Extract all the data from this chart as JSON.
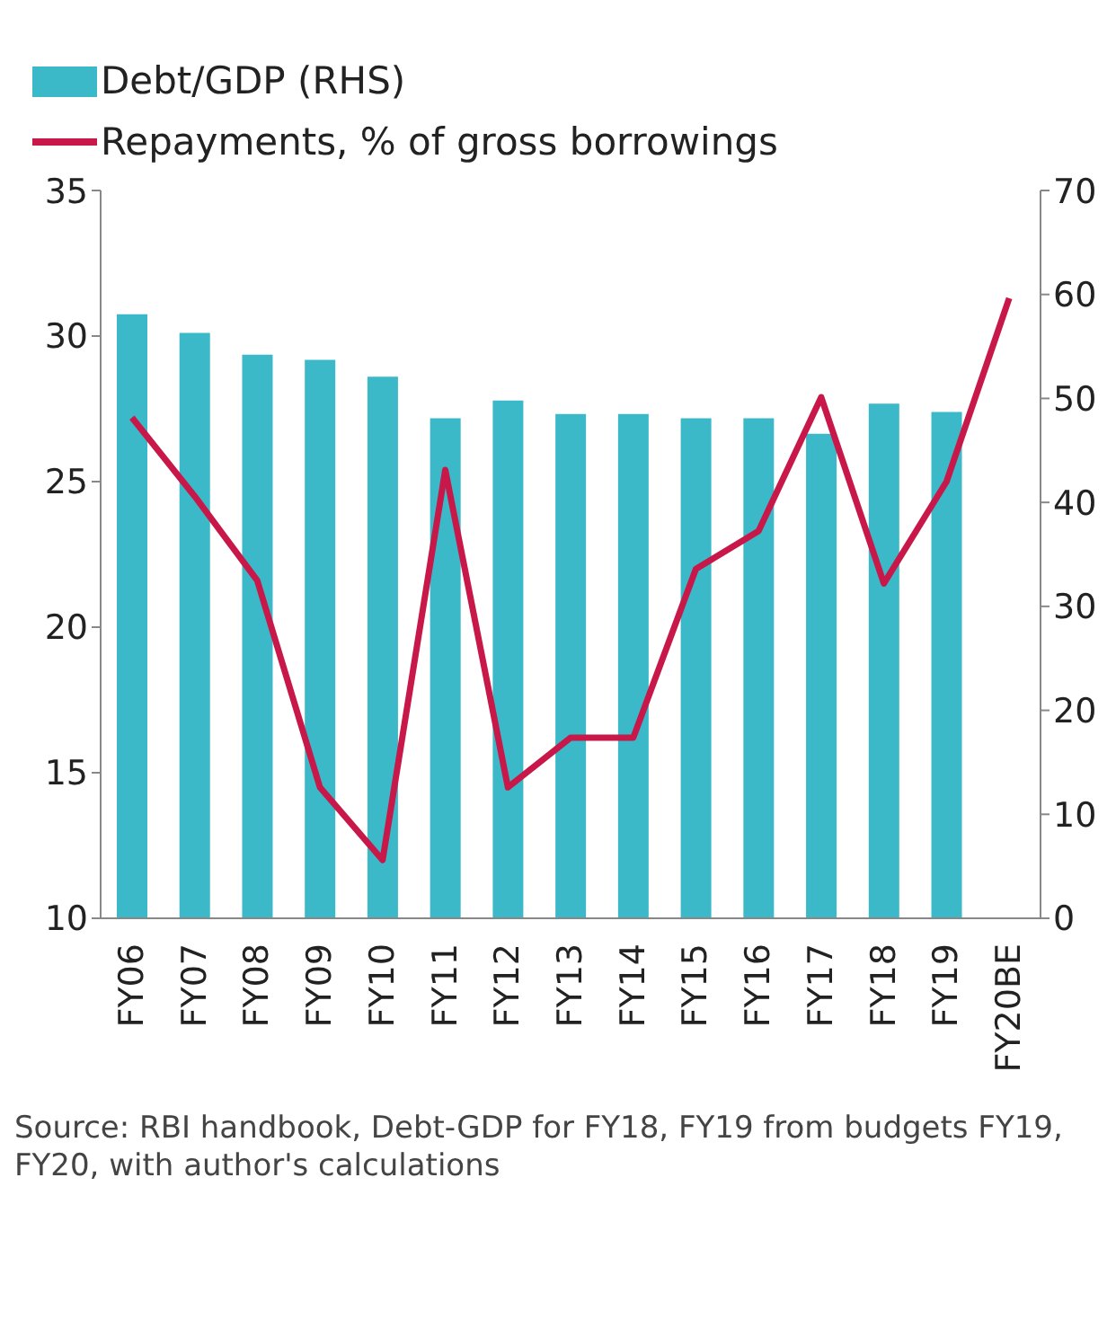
{
  "chart_data": {
    "type": "bar",
    "categories": [
      "FY06",
      "FY07",
      "FY08",
      "FY09",
      "FY10",
      "FY11",
      "FY12",
      "FY13",
      "FY14",
      "FY15",
      "FY16",
      "FY17",
      "FY18",
      "FY19",
      "FY20BE"
    ],
    "series": [
      {
        "name": "Debt/GDP (RHS)",
        "axis": "y2",
        "color": "#3bb9c9",
        "values": [
          58.1,
          56.3,
          54.2,
          53.7,
          52.1,
          48.1,
          49.8,
          48.5,
          48.5,
          48.1,
          48.1,
          46.6,
          49.5,
          48.7,
          null
        ]
      },
      {
        "name": "Repayments, % of gross borrowings",
        "type": "line",
        "color": "#c8184a",
        "values": [
          27.2,
          24.5,
          21.6,
          14.5,
          12.0,
          25.4,
          14.5,
          16.2,
          16.2,
          22.0,
          23.3,
          27.9,
          21.5,
          25.0,
          31.3
        ]
      }
    ],
    "ylim": [
      10,
      35
    ],
    "yticks": [
      10,
      15,
      20,
      25,
      30,
      35
    ],
    "y2lim": [
      0,
      70
    ],
    "y2ticks": [
      0,
      10,
      20,
      30,
      40,
      50,
      60,
      70
    ],
    "legend": "top left",
    "grid": false,
    "marker": "none",
    "line_style": "solid",
    "annotations": [
      "Source: RBI handbook, Debt-GDP for FY18, FY19 from budgets FY19, FY20, with author's calculations"
    ]
  }
}
